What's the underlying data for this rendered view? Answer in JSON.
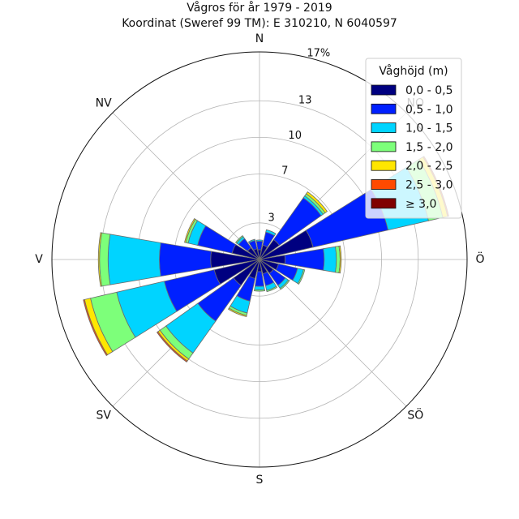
{
  "chart_data": {
    "type": "windrose",
    "title_line1": "Vågros för år 1979 - 2019",
    "title_line2": "Koordinat (Sweref 99 TM): E 310210, N 6040597",
    "directions": [
      "N",
      "NO",
      "Ö",
      "SÖ",
      "S",
      "SV",
      "V",
      "NV"
    ],
    "rings": [
      {
        "value": 3,
        "label": "3"
      },
      {
        "value": 7,
        "label": "7"
      },
      {
        "value": 10,
        "label": "10"
      },
      {
        "value": 13,
        "label": "13"
      },
      {
        "value": 17,
        "label": "17%"
      }
    ],
    "rmax": 17,
    "legend_title": "Våghöjd (m)",
    "legend_placement": "top-right",
    "bins": [
      {
        "label": "0,0 - 0,5",
        "color": "#000080"
      },
      {
        "label": "0,5 - 1,0",
        "color": "#0020ff"
      },
      {
        "label": "1,0 - 1,5",
        "color": "#00d4ff"
      },
      {
        "label": "1,5 - 2,0",
        "color": "#7dff7a"
      },
      {
        "label": "2,0 - 2,5",
        "color": "#ffe600"
      },
      {
        "label": "2,5 - 3,0",
        "color": "#ff4a00"
      },
      {
        "label": "≥ 3,0",
        "color": "#800000"
      }
    ],
    "sectors": [
      {
        "angle": 0,
        "cum": [
          0.8,
          1.5,
          1.6,
          1.6,
          1.6,
          1.6,
          1.6
        ]
      },
      {
        "angle": 22.5,
        "cum": [
          1.2,
          2.3,
          2.5,
          2.5,
          2.5,
          2.5,
          2.5
        ]
      },
      {
        "angle": 45,
        "cum": [
          2.0,
          6.2,
          6.4,
          6.6,
          6.8,
          6.8,
          6.8
        ]
      },
      {
        "angle": 67.5,
        "cum": [
          4.5,
          10.8,
          14.2,
          15.4,
          15.8,
          15.9,
          15.9
        ]
      },
      {
        "angle": 90,
        "cum": [
          2.1,
          5.3,
          6.3,
          6.6,
          6.7,
          6.7,
          6.7
        ]
      },
      {
        "angle": 112.5,
        "cum": [
          1.6,
          3.2,
          3.7,
          3.8,
          3.8,
          3.8,
          3.8
        ]
      },
      {
        "angle": 135,
        "cum": [
          1.4,
          2.6,
          2.9,
          3.0,
          3.0,
          3.0,
          3.0
        ]
      },
      {
        "angle": 157.5,
        "cum": [
          1.2,
          2.2,
          2.6,
          2.7,
          2.7,
          2.7,
          2.7
        ]
      },
      {
        "angle": 180,
        "cum": [
          1.0,
          2.2,
          2.5,
          2.6,
          2.6,
          2.6,
          2.6
        ]
      },
      {
        "angle": 202.5,
        "cum": [
          1.6,
          3.5,
          4.5,
          4.7,
          4.8,
          4.8,
          4.8
        ]
      },
      {
        "angle": 225,
        "cum": [
          2.6,
          6.2,
          9.4,
          10.0,
          10.2,
          10.3,
          10.3
        ]
      },
      {
        "angle": 247.5,
        "cum": [
          3.8,
          8.0,
          12.0,
          14.2,
          14.7,
          14.8,
          14.8
        ]
      },
      {
        "angle": 270,
        "cum": [
          4.0,
          8.2,
          12.4,
          13.1,
          13.2,
          13.2,
          13.2
        ]
      },
      {
        "angle": 292.5,
        "cum": [
          2.3,
          5.2,
          6.0,
          6.2,
          6.3,
          6.3,
          6.3
        ]
      },
      {
        "angle": 315,
        "cum": [
          1.2,
          2.1,
          2.3,
          2.4,
          2.4,
          2.4,
          2.4
        ]
      },
      {
        "angle": 337.5,
        "cum": [
          0.9,
          1.6,
          1.7,
          1.7,
          1.7,
          1.7,
          1.7
        ]
      }
    ]
  }
}
